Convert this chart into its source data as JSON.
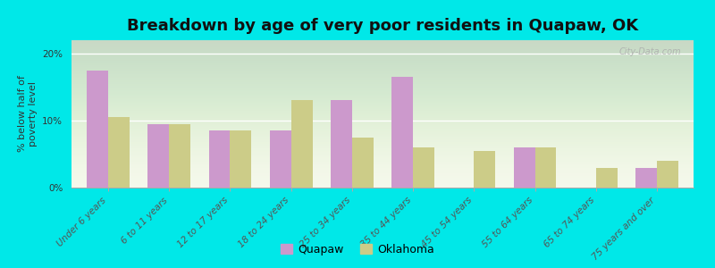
{
  "title": "Breakdown by age of very poor residents in Quapaw, OK",
  "ylabel": "% below half of\npoverty level",
  "categories": [
    "Under 6 years",
    "6 to 11 years",
    "12 to 17 years",
    "18 to 24 years",
    "25 to 34 years",
    "35 to 44 years",
    "45 to 54 years",
    "55 to 64 years",
    "65 to 74 years",
    "75 years and over"
  ],
  "quapaw_values": [
    17.5,
    9.5,
    8.5,
    8.5,
    13.0,
    16.5,
    0.0,
    6.0,
    0.0,
    3.0
  ],
  "oklahoma_values": [
    10.5,
    9.5,
    8.5,
    13.0,
    7.5,
    6.0,
    5.5,
    6.0,
    3.0,
    4.0
  ],
  "quapaw_color": "#cc99cc",
  "oklahoma_color": "#cccc88",
  "background_color": "#00e8e8",
  "plot_bg_top": "#f5f8ea",
  "plot_bg_bottom": "#e8f0d8",
  "ylim": [
    0,
    22
  ],
  "yticks": [
    0,
    10,
    20
  ],
  "ytick_labels": [
    "0%",
    "10%",
    "20%"
  ],
  "bar_width": 0.35,
  "title_fontsize": 13,
  "axis_label_fontsize": 8,
  "tick_fontsize": 7.5,
  "legend_fontsize": 9,
  "watermark": "City-Data.com"
}
